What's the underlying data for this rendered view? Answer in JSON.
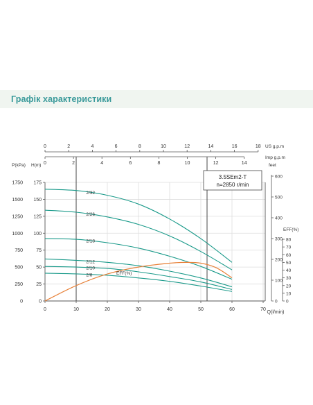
{
  "page_title": "Графік характеристики",
  "chart_data": {
    "type": "line",
    "model_label": "3.5SEm2-T",
    "speed_label": "n=2850 r/min",
    "x_unit_label": "Q(l/min)",
    "x_ticks": [
      "0",
      "10",
      "20",
      "30",
      "40",
      "50",
      "60",
      "70"
    ],
    "xlim": [
      0,
      70
    ],
    "us_unit_label": "US  g.p.m",
    "us_ticks": [
      "0",
      "2",
      "4",
      "6",
      "8",
      "10",
      "12",
      "14",
      "16",
      "18"
    ],
    "imp_unit_label": "Imp  g.p.m",
    "imp_ticks": [
      "0",
      "2",
      "4",
      "6",
      "8",
      "10",
      "12",
      "14"
    ],
    "p_unit_label": "P(kPa)",
    "p_ticks": [
      "0",
      "250",
      "500",
      "750",
      "1000",
      "1250",
      "1500",
      "1750"
    ],
    "h_unit_label": "H(m)",
    "h_ticks": [
      "0",
      "25",
      "50",
      "75",
      "100",
      "125",
      "150",
      "175"
    ],
    "ylim_h": [
      0,
      175
    ],
    "feet_unit_label": "feet",
    "feet_ticks": [
      "0",
      "100",
      "200",
      "300",
      "400",
      "500",
      "600"
    ],
    "eff_unit_label": "EFF(%)",
    "eff_ticks": [
      "0",
      "10",
      "20",
      "30",
      "40",
      "50",
      "60",
      "70",
      "80"
    ],
    "ylim_eff": [
      0,
      100
    ],
    "series": [
      {
        "name": "2/32",
        "color": "#1a9a8a",
        "x": [
          0,
          10,
          20,
          30,
          40,
          50,
          60
        ],
        "y": [
          165,
          163,
          156,
          143,
          121,
          92,
          57
        ]
      },
      {
        "name": "2/26",
        "color": "#1a9a8a",
        "x": [
          0,
          10,
          20,
          30,
          40,
          50,
          60
        ],
        "y": [
          134,
          131,
          124,
          113,
          96,
          73,
          46
        ]
      },
      {
        "name": "2/18",
        "color": "#1a9a8a",
        "x": [
          0,
          10,
          20,
          30,
          40,
          50,
          60
        ],
        "y": [
          92,
          91,
          86,
          78,
          66,
          51,
          32
        ]
      },
      {
        "name": "2/12",
        "color": "#1a9a8a",
        "x": [
          0,
          10,
          20,
          30,
          40,
          50,
          60
        ],
        "y": [
          62,
          60,
          57,
          52,
          44,
          34,
          21
        ]
      },
      {
        "name": "2/10",
        "color": "#1a9a8a",
        "x": [
          0,
          10,
          20,
          30,
          40,
          50,
          60
        ],
        "y": [
          51,
          50,
          48,
          43,
          36,
          28,
          17
        ]
      },
      {
        "name": "2/8",
        "color": "#1a9a8a",
        "x": [
          0,
          10,
          20,
          30,
          40,
          50,
          60
        ],
        "y": [
          41,
          40,
          38,
          34,
          29,
          22,
          14
        ]
      }
    ],
    "eff_series": {
      "name": "EFF(%)",
      "color": "#e8823a",
      "x": [
        0,
        10,
        20,
        30,
        40,
        45,
        50,
        55,
        60
      ],
      "y": [
        0,
        20,
        35,
        44,
        49,
        50,
        49,
        43,
        30
      ]
    },
    "ref_lines_x": [
      10,
      52
    ]
  }
}
